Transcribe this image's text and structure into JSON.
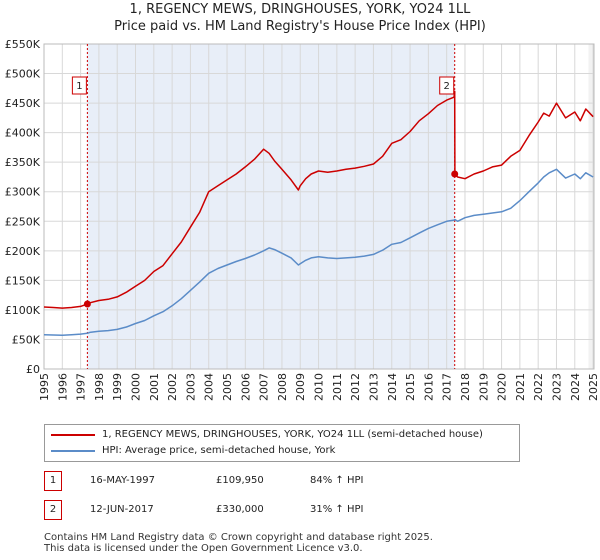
{
  "chart_data": {
    "type": "line",
    "title": "1, REGENCY MEWS, DRINGHOUSES, YORK, YO24 1LL",
    "subtitle": "Price paid vs. HM Land Registry's House Price Index (HPI)",
    "xlabel": "",
    "ylabel": "",
    "xlim": [
      1995,
      2025.05
    ],
    "ylim": [
      0,
      550000
    ],
    "x_ticks": [
      1995,
      1996,
      1997,
      1998,
      1999,
      2000,
      2001,
      2002,
      2003,
      2004,
      2005,
      2006,
      2007,
      2008,
      2009,
      2010,
      2011,
      2012,
      2013,
      2014,
      2015,
      2016,
      2017,
      2018,
      2019,
      2020,
      2021,
      2022,
      2023,
      2024,
      2025
    ],
    "x_tick_labels": [
      "1995",
      "1996",
      "1997",
      "1998",
      "1999",
      "2000",
      "2001",
      "2002",
      "2003",
      "2004",
      "2005",
      "2006",
      "2007",
      "2008",
      "2009",
      "2010",
      "2011",
      "2012",
      "2013",
      "2014",
      "2015",
      "2016",
      "2017",
      "2018",
      "2019",
      "2020",
      "2021",
      "2022",
      "2023",
      "2024",
      "2025"
    ],
    "y_ticks": [
      0,
      50000,
      100000,
      150000,
      200000,
      250000,
      300000,
      350000,
      400000,
      450000,
      500000,
      550000
    ],
    "y_tick_labels": [
      "£0",
      "£50K",
      "£100K",
      "£150K",
      "£200K",
      "£250K",
      "£300K",
      "£350K",
      "£400K",
      "£450K",
      "£500K",
      "£550K"
    ],
    "grid": true,
    "series": [
      {
        "name": "1, REGENCY MEWS, DRINGHOUSES, YORK, YO24 1LL (semi-detached house)",
        "color": "#cc0000",
        "x": [
          1995,
          1995.5,
          1996,
          1996.5,
          1997,
          1997.37,
          1997.5,
          1998,
          1998.5,
          1999,
          1999.5,
          2000,
          2000.5,
          2001,
          2001.5,
          2002,
          2002.5,
          2003,
          2003.5,
          2004,
          2004.5,
          2005,
          2005.5,
          2006,
          2006.5,
          2007,
          2007.3,
          2007.6,
          2008,
          2008.5,
          2008.9,
          2009,
          2009.3,
          2009.6,
          2010,
          2010.5,
          2011,
          2011.5,
          2012,
          2012.5,
          2013,
          2013.5,
          2014,
          2014.5,
          2015,
          2015.5,
          2016,
          2016.5,
          2017,
          2017.4,
          2017.44,
          2017.45,
          2017.6,
          2018,
          2018.5,
          2019,
          2019.5,
          2020,
          2020.5,
          2021,
          2021.5,
          2022,
          2022.3,
          2022.6,
          2023,
          2023.5,
          2024,
          2024.3,
          2024.6,
          2025
        ],
        "values": [
          105000,
          104000,
          103000,
          104000,
          106000,
          109950,
          112000,
          116000,
          118000,
          122000,
          130000,
          140000,
          150000,
          165000,
          175000,
          195000,
          215000,
          240000,
          265000,
          300000,
          310000,
          320000,
          330000,
          342000,
          355000,
          372000,
          365000,
          352000,
          338000,
          320000,
          303000,
          310000,
          322000,
          330000,
          335000,
          333000,
          335000,
          338000,
          340000,
          343000,
          347000,
          360000,
          382000,
          388000,
          402000,
          420000,
          432000,
          446000,
          455000,
          460000,
          470000,
          330000,
          325000,
          322000,
          330000,
          335000,
          342000,
          345000,
          360000,
          370000,
          395000,
          418000,
          433000,
          428000,
          450000,
          425000,
          435000,
          420000,
          440000,
          427000
        ]
      },
      {
        "name": "HPI: Average price, semi-detached house, York",
        "color": "#5b8cc8",
        "x": [
          1995,
          1995.5,
          1996,
          1996.5,
          1997,
          1997.37,
          1997.5,
          1998,
          1998.5,
          1999,
          1999.5,
          2000,
          2000.5,
          2001,
          2001.5,
          2002,
          2002.5,
          2003,
          2003.5,
          2004,
          2004.5,
          2005,
          2005.5,
          2006,
          2006.5,
          2007,
          2007.3,
          2007.6,
          2008,
          2008.5,
          2008.9,
          2009,
          2009.3,
          2009.6,
          2010,
          2010.5,
          2011,
          2011.5,
          2012,
          2012.5,
          2013,
          2013.5,
          2014,
          2014.5,
          2015,
          2015.5,
          2016,
          2016.5,
          2017,
          2017.4,
          2017.45,
          2017.6,
          2018,
          2018.5,
          2019,
          2019.5,
          2020,
          2020.5,
          2021,
          2021.5,
          2022,
          2022.3,
          2022.6,
          2023,
          2023.5,
          2024,
          2024.3,
          2024.6,
          2025
        ],
        "values": [
          58000,
          57500,
          57000,
          58000,
          59000,
          60500,
          62000,
          64000,
          65000,
          67000,
          71000,
          77000,
          82000,
          90000,
          97000,
          107000,
          119000,
          133000,
          147000,
          162000,
          170000,
          176000,
          182000,
          187000,
          193000,
          200000,
          205000,
          202000,
          196000,
          188000,
          176000,
          178000,
          184000,
          188000,
          190000,
          188000,
          187000,
          188000,
          189000,
          191000,
          194000,
          201000,
          211000,
          214000,
          222000,
          230000,
          238000,
          244000,
          250000,
          252000,
          253000,
          250000,
          256000,
          260000,
          262000,
          264000,
          266000,
          272000,
          285000,
          300000,
          315000,
          325000,
          332000,
          338000,
          323000,
          330000,
          322000,
          332000,
          325000
        ]
      }
    ],
    "annotations": [
      {
        "label": "1",
        "x": 1997.37,
        "value": 109950
      },
      {
        "label": "2",
        "x": 2017.44,
        "value": 330000
      }
    ]
  },
  "legend": {
    "item1": "1, REGENCY MEWS, DRINGHOUSES, YORK, YO24 1LL (semi-detached house)",
    "item2": "HPI: Average price, semi-detached house, York"
  },
  "sales": [
    {
      "num": "1",
      "date": "16-MAY-1997",
      "price": "£109,950",
      "hpi": "84% ↑ HPI"
    },
    {
      "num": "2",
      "date": "12-JUN-2017",
      "price": "£330,000",
      "hpi": "31% ↑ HPI"
    }
  ],
  "footer": {
    "line1": "Contains HM Land Registry data © Crown copyright and database right 2025.",
    "line2": "This data is licensed under the Open Government Licence v3.0."
  },
  "colors": {
    "property": "#cc0000",
    "hpi": "#5b8cc8",
    "shade": "#e8eef8",
    "grid": "#d8d8d8"
  }
}
